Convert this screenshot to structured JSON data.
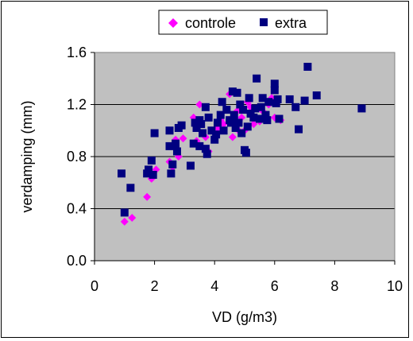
{
  "chart_data": {
    "type": "scatter",
    "title": "",
    "xlabel": "VD (g/m3)",
    "ylabel": "verdamping (mm)",
    "xlim": [
      0,
      10
    ],
    "ylim": [
      0.0,
      1.6
    ],
    "x_ticks": [
      0,
      2,
      4,
      6,
      8,
      10
    ],
    "y_ticks": [
      0.0,
      0.4,
      0.8,
      1.2,
      1.6
    ],
    "x_tick_labels": [
      "0",
      "2",
      "4",
      "6",
      "8",
      "10"
    ],
    "y_tick_labels": [
      "0.0",
      "0.4",
      "0.8",
      "1.2",
      "1.6"
    ],
    "grid": "horizontal major gridlines",
    "plot_background": "#c0c0c0",
    "legend_position": "top",
    "series": [
      {
        "name": "controle",
        "marker": "diamond",
        "color": "#ff00ff",
        "points": [
          [
            1.0,
            0.3
          ],
          [
            1.25,
            0.33
          ],
          [
            1.75,
            0.49
          ],
          [
            1.9,
            0.63
          ],
          [
            2.05,
            0.7
          ],
          [
            2.5,
            0.76
          ],
          [
            2.6,
            0.72
          ],
          [
            2.7,
            0.93
          ],
          [
            2.8,
            0.8
          ],
          [
            2.95,
            0.94
          ],
          [
            3.3,
            1.1
          ],
          [
            3.4,
            0.92
          ],
          [
            3.5,
            1.2
          ],
          [
            3.6,
            0.98
          ],
          [
            3.8,
            0.84
          ],
          [
            3.9,
            1.0
          ],
          [
            4.1,
            1.02
          ],
          [
            4.3,
            1.05
          ],
          [
            4.5,
            1.28
          ],
          [
            4.6,
            0.95
          ],
          [
            4.75,
            1.15
          ],
          [
            4.9,
            1.1
          ],
          [
            5.0,
            1.0
          ],
          [
            5.1,
            1.22
          ],
          [
            5.3,
            1.05
          ],
          [
            5.5,
            1.07
          ],
          [
            5.6,
            1.15
          ],
          [
            5.8,
            1.2
          ],
          [
            6.0,
            1.1
          ],
          [
            6.2,
            1.08
          ],
          [
            4.2,
            1.08
          ],
          [
            3.7,
            0.95
          ],
          [
            4.8,
            1.0
          ],
          [
            5.2,
            1.18
          ],
          [
            5.9,
            1.25
          ]
        ]
      },
      {
        "name": "extra",
        "marker": "square",
        "color": "#000080",
        "points": [
          [
            0.9,
            0.67
          ],
          [
            1.0,
            0.37
          ],
          [
            1.2,
            0.56
          ],
          [
            1.75,
            0.67
          ],
          [
            1.8,
            0.7
          ],
          [
            1.9,
            0.77
          ],
          [
            1.95,
            0.66
          ],
          [
            2.0,
            0.98
          ],
          [
            2.5,
            1.0
          ],
          [
            2.5,
            0.88
          ],
          [
            2.55,
            0.67
          ],
          [
            2.6,
            0.74
          ],
          [
            2.7,
            0.9
          ],
          [
            2.75,
            0.84
          ],
          [
            2.8,
            1.02
          ],
          [
            2.9,
            1.04
          ],
          [
            3.2,
            0.73
          ],
          [
            3.3,
            0.9
          ],
          [
            3.35,
            1.06
          ],
          [
            3.4,
            1.02
          ],
          [
            3.5,
            0.88
          ],
          [
            3.5,
            1.08
          ],
          [
            3.55,
            1.05
          ],
          [
            3.6,
            0.98
          ],
          [
            3.7,
            1.18
          ],
          [
            3.7,
            0.86
          ],
          [
            3.75,
            0.82
          ],
          [
            3.8,
            1.1
          ],
          [
            3.9,
            1.0
          ],
          [
            4.0,
            0.93
          ],
          [
            4.05,
            0.97
          ],
          [
            4.1,
            1.06
          ],
          [
            4.2,
            1.12
          ],
          [
            4.25,
            1.22
          ],
          [
            4.3,
            1.0
          ],
          [
            4.4,
            1.16
          ],
          [
            4.5,
            1.08
          ],
          [
            4.55,
            1.06
          ],
          [
            4.6,
            1.3
          ],
          [
            4.65,
            1.12
          ],
          [
            4.7,
            1.02
          ],
          [
            4.75,
            1.29
          ],
          [
            4.8,
            1.06
          ],
          [
            4.85,
            1.2
          ],
          [
            4.9,
            0.98
          ],
          [
            4.95,
            1.16
          ],
          [
            5.0,
            0.85
          ],
          [
            5.05,
            0.83
          ],
          [
            5.1,
            1.03
          ],
          [
            5.15,
            1.25
          ],
          [
            5.2,
            1.13
          ],
          [
            5.3,
            1.1
          ],
          [
            5.35,
            1.17
          ],
          [
            5.4,
            1.4
          ],
          [
            5.5,
            1.09
          ],
          [
            5.55,
            1.18
          ],
          [
            5.6,
            1.25
          ],
          [
            5.7,
            1.12
          ],
          [
            5.75,
            1.08
          ],
          [
            5.8,
            1.22
          ],
          [
            6.0,
            1.31
          ],
          [
            6.0,
            1.36
          ],
          [
            6.05,
            1.21
          ],
          [
            6.1,
            1.24
          ],
          [
            6.15,
            1.09
          ],
          [
            6.5,
            1.24
          ],
          [
            6.7,
            1.18
          ],
          [
            6.8,
            1.01
          ],
          [
            7.0,
            1.23
          ],
          [
            7.1,
            1.49
          ],
          [
            7.4,
            1.27
          ],
          [
            8.9,
            1.17
          ]
        ]
      }
    ]
  }
}
